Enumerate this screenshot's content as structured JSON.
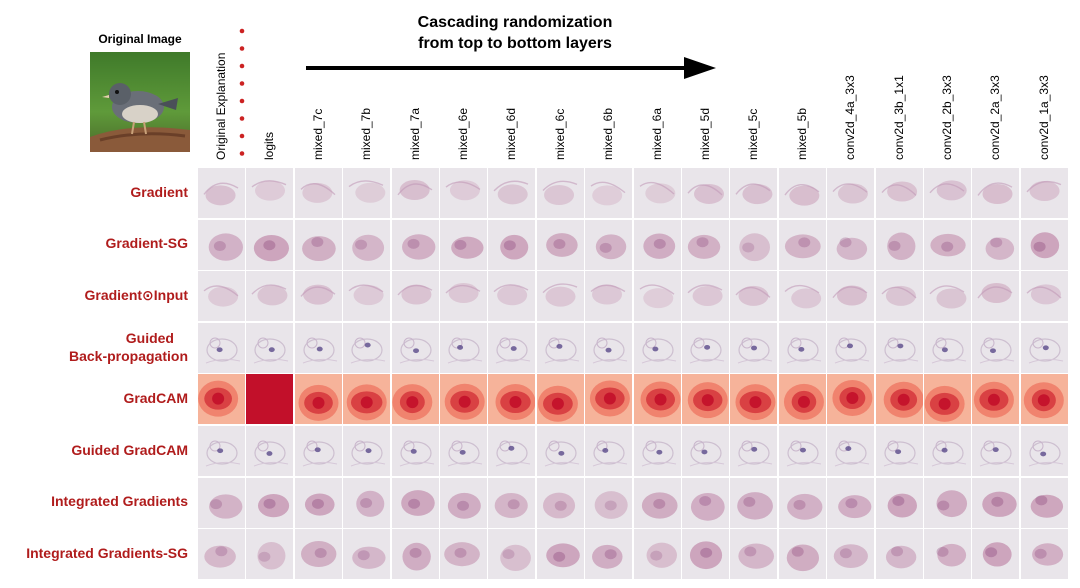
{
  "figure": {
    "original_image_label": "Original Image",
    "title_line1": "Cascading randomization",
    "title_line2": "from top to bottom layers",
    "columns": [
      "Original Explanation",
      "logits",
      "mixed_7c",
      "mixed_7b",
      "mixed_7a",
      "mixed_6e",
      "mixed_6d",
      "mixed_6c",
      "mixed_6b",
      "mixed_6a",
      "mixed_5d",
      "mixed_5c",
      "mixed_5b",
      "conv2d_4a_3x3",
      "conv2d_3b_1x1",
      "conv2d_2b_3x3",
      "conv2d_2a_3x3",
      "conv2d_1a_3x3"
    ],
    "rows": [
      {
        "label": "Gradient",
        "style": "pink-faint"
      },
      {
        "label": "Gradient-SG",
        "style": "pink-blob"
      },
      {
        "label": "Gradient⊙Input",
        "style": "pink-faint"
      },
      {
        "label": "Guided",
        "label2": "Back-propagation",
        "style": "bird-outline"
      },
      {
        "label": "GradCAM",
        "style": "red-heat"
      },
      {
        "label": "Guided GradCAM",
        "style": "bird-outline"
      },
      {
        "label": "Integrated Gradients",
        "style": "pink-blob"
      },
      {
        "label": "Integrated Gradients-SG",
        "style": "pink-blob"
      }
    ],
    "colors": {
      "row_label": "#b01c1c",
      "dots": "#cc2222",
      "cell_bg": "#e9e5ea",
      "pink": "#b9799e",
      "red_dark": "#c2102a",
      "red_light": "#f2a08a"
    }
  }
}
